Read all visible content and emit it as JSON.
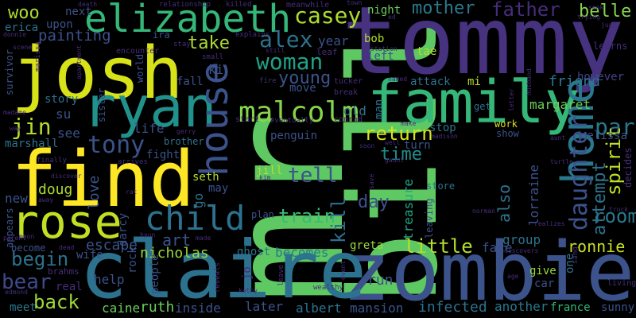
{
  "words": [
    {
      "text": "mr",
      "color": "#5ec962",
      "vertical": true
    },
    {
      "text": "bill",
      "color": "#5ec962"
    },
    {
      "text": "tommy",
      "color": "#46327e",
      "vertical": false
    },
    {
      "text": "zombie",
      "color": "#3b528b"
    },
    {
      "text": "claire",
      "color": "#2c728e"
    },
    {
      "text": "josh",
      "color": "#d8e219"
    },
    {
      "text": "find",
      "color": "#fde725"
    },
    {
      "text": "family",
      "color": "#35b779"
    },
    {
      "text": "ryan",
      "color": "#21918c"
    },
    {
      "text": "elizabeth",
      "color": "#35b779"
    },
    {
      "text": "house",
      "color": "#3b528b"
    },
    {
      "text": "rose",
      "color": "#c2df23"
    },
    {
      "text": "home",
      "color": "#2a788e"
    },
    {
      "text": "child",
      "color": "#2c728e"
    },
    {
      "text": "malcolm",
      "color": "#86d549"
    },
    {
      "text": "woman",
      "color": "#1fa187"
    },
    {
      "text": "tony",
      "color": "#3b528b"
    },
    {
      "text": "alex",
      "color": "#2c728e"
    },
    {
      "text": "casey",
      "color": "#addc30"
    },
    {
      "text": "daughter",
      "color": "#3b528b"
    },
    {
      "text": "park",
      "color": "#2a788e"
    },
    {
      "text": "jin",
      "color": "#b5de2b"
    },
    {
      "text": "return",
      "color": "#d8e219"
    },
    {
      "text": "mother",
      "color": "#2a788e"
    },
    {
      "text": "father",
      "color": "#472d7b"
    },
    {
      "text": "belle",
      "color": "#86d549"
    },
    {
      "text": "room",
      "color": "#2a788e"
    },
    {
      "text": "spirit",
      "color": "#bddf26"
    },
    {
      "text": "train",
      "color": "#3bbb75"
    },
    {
      "text": "tell",
      "color": "#3b528b"
    },
    {
      "text": "kill",
      "color": "#2e6e8e"
    },
    {
      "text": "little",
      "color": "#b5de2b"
    },
    {
      "text": "time",
      "color": "#228c8d"
    },
    {
      "text": "attempt",
      "color": "#2c728e"
    },
    {
      "text": "ronnie",
      "color": "#c8e020"
    },
    {
      "text": "begin",
      "color": "#2c728e"
    },
    {
      "text": "bear",
      "color": "#3e4a89"
    },
    {
      "text": "back",
      "color": "#9bd93c"
    },
    {
      "text": "painting",
      "color": "#3b528b"
    },
    {
      "text": "woo",
      "color": "#addc30"
    },
    {
      "text": "take",
      "color": "#addc30"
    },
    {
      "text": "young",
      "color": "#3b528b"
    },
    {
      "text": "also",
      "color": "#2c728e"
    },
    {
      "text": "day",
      "color": "#3b528b"
    },
    {
      "text": "art",
      "color": "#3b528b"
    },
    {
      "text": "nicholas",
      "color": "#9bd93c"
    },
    {
      "text": "escape",
      "color": "#3b528b"
    },
    {
      "text": "love",
      "color": "#3b528b"
    },
    {
      "text": "lorraine",
      "color": "#3b528b"
    },
    {
      "text": "friend",
      "color": "#2a788e"
    },
    {
      "text": "treasure",
      "color": "#22a785"
    },
    {
      "text": "margaret",
      "color": "#6ccd5a"
    },
    {
      "text": "however",
      "color": "#414487"
    },
    {
      "text": "melissa",
      "color": "#3b528b"
    },
    {
      "text": "group",
      "color": "#2c728e"
    },
    {
      "text": "face",
      "color": "#3b528b"
    },
    {
      "text": "infected",
      "color": "#2c728e"
    },
    {
      "text": "mansion",
      "color": "#3b528b"
    },
    {
      "text": "another",
      "color": "#2a788e"
    },
    {
      "text": "france",
      "color": "#35b779"
    },
    {
      "text": "caine",
      "color": "#6ccd5a"
    },
    {
      "text": "ruth",
      "color": "#6ccd5a"
    },
    {
      "text": "inside",
      "color": "#3b528b"
    },
    {
      "text": "later",
      "color": "#3b528b"
    },
    {
      "text": "albert",
      "color": "#2c728e"
    },
    {
      "text": "run",
      "color": "#3b528b"
    },
    {
      "text": "greta",
      "color": "#9bd93c"
    },
    {
      "text": "becomes",
      "color": "#2a788e"
    },
    {
      "text": "ghost",
      "color": "#2c728e"
    },
    {
      "text": "help",
      "color": "#3b528b"
    },
    {
      "text": "meet",
      "color": "#2a788e"
    },
    {
      "text": "doug",
      "color": "#addc30"
    },
    {
      "text": "new",
      "color": "#3b528b"
    },
    {
      "text": "marshall",
      "color": "#2c728e"
    },
    {
      "text": "see",
      "color": "#3b528b"
    },
    {
      "text": "story",
      "color": "#2c728e"
    },
    {
      "text": "life",
      "color": "#3b528b"
    },
    {
      "text": "fight",
      "color": "#3b528b"
    },
    {
      "text": "brother",
      "color": "#2c728e"
    },
    {
      "text": "seth",
      "color": "#b5de2b"
    },
    {
      "text": "may",
      "color": "#3b528b"
    },
    {
      "text": "jill",
      "color": "#b5de2b"
    },
    {
      "text": "plan",
      "color": "#3b528b"
    },
    {
      "text": "stop",
      "color": "#2c728e"
    },
    {
      "text": "work",
      "color": "#d8e219"
    },
    {
      "text": "show",
      "color": "#3b528b"
    },
    {
      "text": "get",
      "color": "#2c728e"
    },
    {
      "text": "give",
      "color": "#9bd93c"
    },
    {
      "text": "car",
      "color": "#3b528b"
    },
    {
      "text": "one",
      "color": "#2c728e"
    },
    {
      "text": "store",
      "color": "#2c728e"
    },
    {
      "text": "leaving",
      "color": "#3b528b"
    },
    {
      "text": "bob",
      "color": "#b5de2b"
    },
    {
      "text": "left",
      "color": "#3b528b"
    },
    {
      "text": "tae",
      "color": "#b5de2b"
    },
    {
      "text": "mi",
      "color": "#b5de2b"
    },
    {
      "text": "attack",
      "color": "#2c728e"
    },
    {
      "text": "old",
      "color": "#2c728e"
    },
    {
      "text": "man",
      "color": "#2c728e"
    },
    {
      "text": "move",
      "color": "#3b528b"
    },
    {
      "text": "penguin",
      "color": "#3b528b"
    },
    {
      "text": "year",
      "color": "#3b528b"
    },
    {
      "text": "night",
      "color": "#6ccd5a"
    },
    {
      "text": "go",
      "color": "#2c728e"
    },
    {
      "text": "darcy",
      "color": "#3b528b"
    },
    {
      "text": "rock",
      "color": "#3b528b"
    },
    {
      "text": "people",
      "color": "#3b528b"
    },
    {
      "text": "wife",
      "color": "#3b528b"
    },
    {
      "text": "become",
      "color": "#3b528b"
    },
    {
      "text": "erica",
      "color": "#2c728e"
    },
    {
      "text": "upon",
      "color": "#3b528b"
    },
    {
      "text": "next",
      "color": "#3b528b"
    },
    {
      "text": "ira",
      "color": "#3b528b"
    },
    {
      "text": "stay",
      "color": "#472d7b"
    },
    {
      "text": "su",
      "color": "#3b528b"
    },
    {
      "text": "fall",
      "color": "#3b528b"
    },
    {
      "text": "sister",
      "color": "#3b528b"
    },
    {
      "text": "survivor",
      "color": "#3b528b"
    },
    {
      "text": "appears",
      "color": "#3b528b"
    },
    {
      "text": "world",
      "color": "#3b528b"
    },
    {
      "text": "jo",
      "color": "#472d7b"
    },
    {
      "text": "real",
      "color": "#472d7b"
    },
    {
      "text": "brahms",
      "color": "#472d7b"
    },
    {
      "text": "learns",
      "color": "#472d7b"
    },
    {
      "text": "decides",
      "color": "#472d7b"
    },
    {
      "text": "sunny",
      "color": "#3b528b"
    },
    {
      "text": "living",
      "color": "#472d7b"
    },
    {
      "text": "sang",
      "color": "#472d7b"
    },
    {
      "text": "turn",
      "color": "#3b528b"
    },
    {
      "text": "ki",
      "color": "#3b528b"
    },
    {
      "text": "tucker",
      "color": "#472d7b"
    },
    {
      "text": "break",
      "color": "#472d7b"
    },
    {
      "text": "conrad",
      "color": "#472d7b"
    },
    {
      "text": "leaf",
      "color": "#472d7b"
    },
    {
      "text": "small",
      "color": "#472d7b"
    },
    {
      "text": "encounter",
      "color": "#472d7b"
    },
    {
      "text": "relationship",
      "color": "#472d7b"
    },
    {
      "text": "killed",
      "color": "#472d7b"
    },
    {
      "text": "meanwhile",
      "color": "#472d7b"
    },
    {
      "text": "town",
      "color": "#472d7b"
    },
    {
      "text": "explains",
      "color": "#472d7b"
    },
    {
      "text": "fire",
      "color": "#472d7b"
    },
    {
      "text": "start",
      "color": "#472d7b"
    },
    {
      "text": "eventually",
      "color": "#472d7b"
    },
    {
      "text": "named",
      "color": "#472d7b"
    },
    {
      "text": "station",
      "color": "#472d7b"
    },
    {
      "text": "gerry",
      "color": "#472d7b"
    },
    {
      "text": "arrives",
      "color": "#472d7b"
    },
    {
      "text": "finally",
      "color": "#472d7b"
    },
    {
      "text": "death",
      "color": "#472d7b"
    },
    {
      "text": "scene",
      "color": "#472d7b"
    },
    {
      "text": "donnie",
      "color": "#472d7b"
    },
    {
      "text": "way",
      "color": "#472d7b"
    },
    {
      "text": "parent",
      "color": "#472d7b"
    },
    {
      "text": "madame",
      "color": "#472d7b"
    },
    {
      "text": "edmond",
      "color": "#472d7b"
    },
    {
      "text": "hyun",
      "color": "#472d7b"
    },
    {
      "text": "dead",
      "color": "#472d7b"
    },
    {
      "text": "reveals",
      "color": "#472d7b"
    },
    {
      "text": "kathy",
      "color": "#472d7b"
    },
    {
      "text": "wealthy",
      "color": "#472d7b"
    },
    {
      "text": "leave",
      "color": "#472d7b"
    },
    {
      "text": "event",
      "color": "#472d7b"
    },
    {
      "text": "discovers",
      "color": "#472d7b"
    },
    {
      "text": "realizes",
      "color": "#472d7b"
    },
    {
      "text": "husband",
      "color": "#472d7b"
    },
    {
      "text": "letter",
      "color": "#472d7b"
    },
    {
      "text": "aunt",
      "color": "#472d7b"
    },
    {
      "text": "turtle",
      "color": "#472d7b"
    },
    {
      "text": "truck",
      "color": "#472d7b"
    },
    {
      "text": "trying",
      "color": "#472d7b"
    },
    {
      "text": "juan",
      "color": "#472d7b"
    },
    {
      "text": "seok",
      "color": "#472d7b"
    },
    {
      "text": "soon",
      "color": "#472d7b"
    },
    {
      "text": "gaunt",
      "color": "#472d7b"
    },
    {
      "text": "make",
      "color": "#472d7b"
    },
    {
      "text": "madison",
      "color": "#472d7b"
    },
    {
      "text": "well",
      "color": "#472d7b"
    },
    {
      "text": "save",
      "color": "#472d7b"
    },
    {
      "text": "kim",
      "color": "#472d7b"
    },
    {
      "text": "rat",
      "color": "#472d7b"
    },
    {
      "text": "moon",
      "color": "#472d7b"
    },
    {
      "text": "norman",
      "color": "#472d7b"
    },
    {
      "text": "made",
      "color": "#472d7b"
    },
    {
      "text": "age",
      "color": "#472d7b"
    },
    {
      "text": "ed",
      "color": "#472d7b"
    },
    {
      "text": "tornado",
      "color": "#472d7b"
    },
    {
      "text": "marissa",
      "color": "#472d7b"
    },
    {
      "text": "still",
      "color": "#472d7b"
    },
    {
      "text": "away",
      "color": "#472d7b"
    },
    {
      "text": "discover",
      "color": "#472d7b"
    },
    {
      "text": "apartment",
      "color": "#472d7b"
    }
  ]
}
